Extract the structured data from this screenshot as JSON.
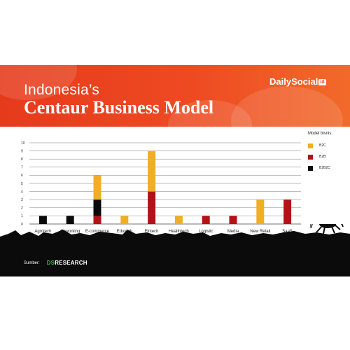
{
  "header": {
    "title_line1": "Indonesia’s",
    "title_line2": "Centaur Business Model",
    "brand": "DailySocial",
    "brand_mark": "id"
  },
  "colors": {
    "header": "#e63a1c",
    "B2C": "#efaf24",
    "B2B": "#b31217",
    "B2B2C": "#0a0a0a",
    "silhouette": "#0b0b0b",
    "gridline": "#444444"
  },
  "chart_data": {
    "type": "bar",
    "stacked": true,
    "categories": [
      "Agrotech",
      "Coworking",
      "E-commerce",
      "Edutech",
      "Fintech",
      "Healthtech",
      "Logistic",
      "Media",
      "New Retail",
      "SaaS"
    ],
    "series": [
      {
        "name": "B2B",
        "values": [
          0,
          0,
          1,
          0,
          4,
          0,
          1,
          1,
          0,
          3
        ]
      },
      {
        "name": "B2B2C",
        "values": [
          1,
          1,
          2,
          0,
          0,
          0,
          0,
          0,
          0,
          0
        ]
      },
      {
        "name": "B2C",
        "values": [
          0,
          0,
          3,
          1,
          5,
          1,
          0,
          0,
          3,
          0
        ]
      }
    ],
    "ylim": [
      0,
      10
    ],
    "yticks": [
      0,
      1,
      2,
      3,
      4,
      5,
      6,
      7,
      8,
      9,
      10
    ],
    "grid": true,
    "legend": {
      "title": "Model bisnis:",
      "position": "right",
      "entries": [
        "B2C",
        "B2B",
        "B2B2C"
      ]
    }
  },
  "footer": {
    "source_label": "Sumber:",
    "source_prefix": "DS",
    "source_name": "RESEARCH"
  }
}
